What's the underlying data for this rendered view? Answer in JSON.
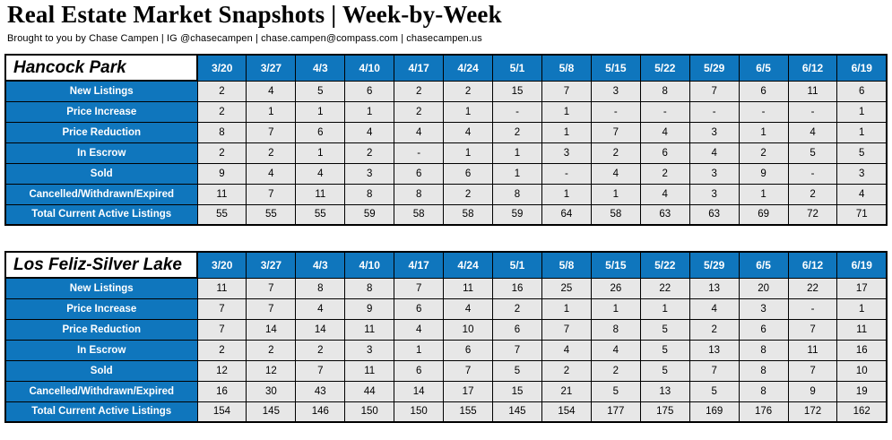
{
  "page": {
    "title": "Real Estate Market Snapshots | Week-by-Week",
    "subtitle": "Brought to you by Chase Campen | IG @chasecampen | chase.campen@compass.com | chasecampen.us"
  },
  "colors": {
    "accent_blue": "#0F76BD",
    "cell_gray": "#E7E7E7",
    "border_black": "#000000"
  },
  "week_dates": [
    "3/20",
    "3/27",
    "4/3",
    "4/10",
    "4/17",
    "4/24",
    "5/1",
    "5/8",
    "5/15",
    "5/22",
    "5/29",
    "6/5",
    "6/12",
    "6/19"
  ],
  "tables": [
    {
      "area": "Hancock Park",
      "rows": [
        {
          "label": "New Listings",
          "values": [
            "2",
            "4",
            "5",
            "6",
            "2",
            "2",
            "15",
            "7",
            "3",
            "8",
            "7",
            "6",
            "11",
            "6"
          ]
        },
        {
          "label": "Price Increase",
          "values": [
            "2",
            "1",
            "1",
            "1",
            "2",
            "1",
            "-",
            "1",
            "-",
            "-",
            "-",
            "-",
            "-",
            "1"
          ]
        },
        {
          "label": "Price Reduction",
          "values": [
            "8",
            "7",
            "6",
            "4",
            "4",
            "4",
            "2",
            "1",
            "7",
            "4",
            "3",
            "1",
            "4",
            "1"
          ]
        },
        {
          "label": "In Escrow",
          "values": [
            "2",
            "2",
            "1",
            "2",
            "-",
            "1",
            "1",
            "3",
            "2",
            "6",
            "4",
            "2",
            "5",
            "5"
          ]
        },
        {
          "label": "Sold",
          "values": [
            "9",
            "4",
            "4",
            "3",
            "6",
            "6",
            "1",
            "-",
            "4",
            "2",
            "3",
            "9",
            "-",
            "3"
          ]
        },
        {
          "label": "Cancelled/Withdrawn/Expired",
          "values": [
            "11",
            "7",
            "11",
            "8",
            "8",
            "2",
            "8",
            "1",
            "1",
            "4",
            "3",
            "1",
            "2",
            "4"
          ]
        },
        {
          "label": "Total Current Active Listings",
          "values": [
            "55",
            "55",
            "55",
            "59",
            "58",
            "58",
            "59",
            "64",
            "58",
            "63",
            "63",
            "69",
            "72",
            "71"
          ]
        }
      ]
    },
    {
      "area": "Los Feliz-Silver Lake",
      "rows": [
        {
          "label": "New Listings",
          "values": [
            "11",
            "7",
            "8",
            "8",
            "7",
            "11",
            "16",
            "25",
            "26",
            "22",
            "13",
            "20",
            "22",
            "17"
          ]
        },
        {
          "label": "Price Increase",
          "values": [
            "7",
            "7",
            "4",
            "9",
            "6",
            "4",
            "2",
            "1",
            "1",
            "1",
            "4",
            "3",
            "-",
            "1"
          ]
        },
        {
          "label": "Price Reduction",
          "values": [
            "7",
            "14",
            "14",
            "11",
            "4",
            "10",
            "6",
            "7",
            "8",
            "5",
            "2",
            "6",
            "7",
            "11"
          ]
        },
        {
          "label": "In Escrow",
          "values": [
            "2",
            "2",
            "2",
            "3",
            "1",
            "6",
            "7",
            "4",
            "4",
            "5",
            "13",
            "8",
            "11",
            "16"
          ]
        },
        {
          "label": "Sold",
          "values": [
            "12",
            "12",
            "7",
            "11",
            "6",
            "7",
            "5",
            "2",
            "2",
            "5",
            "7",
            "8",
            "7",
            "10"
          ]
        },
        {
          "label": "Cancelled/Withdrawn/Expired",
          "values": [
            "16",
            "30",
            "43",
            "44",
            "14",
            "17",
            "15",
            "21",
            "5",
            "13",
            "5",
            "8",
            "9",
            "19"
          ]
        },
        {
          "label": "Total Current Active Listings",
          "values": [
            "154",
            "145",
            "146",
            "150",
            "150",
            "155",
            "145",
            "154",
            "177",
            "175",
            "169",
            "176",
            "172",
            "162"
          ]
        }
      ]
    }
  ]
}
